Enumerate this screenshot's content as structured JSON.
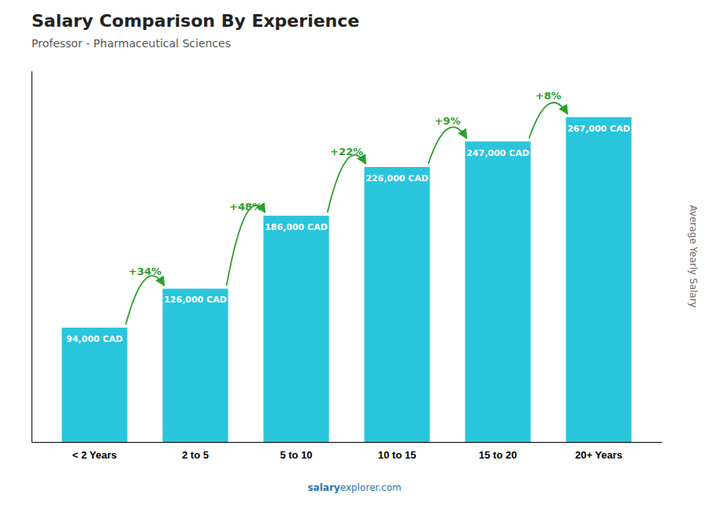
{
  "chart_data": {
    "type": "bar",
    "title": "Salary Comparison By Experience",
    "subtitle": "Professor - Pharmaceutical Sciences",
    "ylabel": "Average Yearly Salary",
    "categories": [
      "< 2 Years",
      "2 to 5",
      "5 to 10",
      "10 to 15",
      "15 to 20",
      "20+ Years"
    ],
    "values": [
      94000,
      126000,
      186000,
      226000,
      247000,
      267000
    ],
    "value_labels": [
      "94,000 CAD",
      "126,000 CAD",
      "186,000 CAD",
      "226,000 CAD",
      "247,000 CAD",
      "267,000 CAD"
    ],
    "data_labels": true,
    "annotations": [
      "+34%",
      "+48%",
      "+22%",
      "+9%",
      "+8%"
    ],
    "footer": [
      "salary",
      "explorer.com"
    ],
    "color": "#29C5DD",
    "ylim": [
      0,
      305000
    ],
    "tick_labels": "x",
    "grid": false
  }
}
